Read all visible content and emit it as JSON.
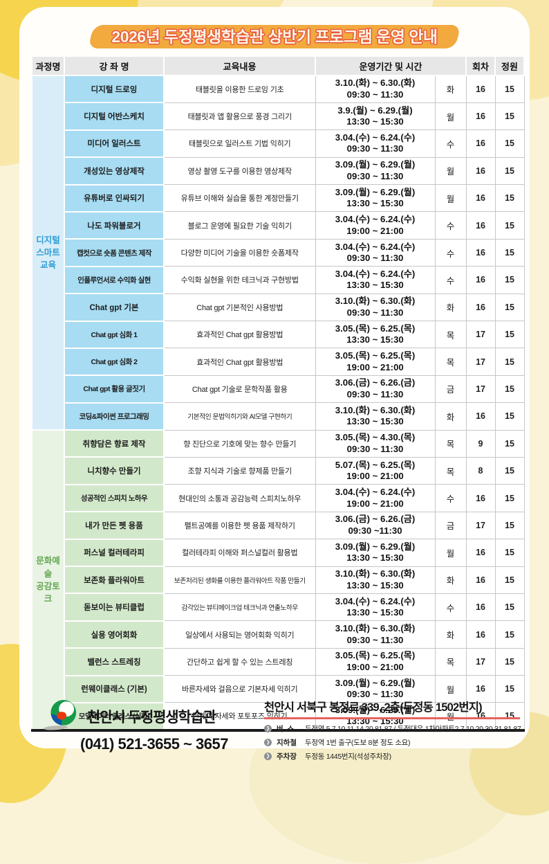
{
  "title": "2026년 두정평생학습관 상반기 프로그램 운영 안내",
  "colors": {
    "page_bg": "#faf3d8",
    "banner_bg": "#f2a93e",
    "banner_text": "#fdf4e4",
    "banner_outline": "#e8573b",
    "header_bg": "#e7e7e7",
    "table_bottom_line": "#1b1b1b",
    "address_underline": "#e4635c"
  },
  "table": {
    "headers": {
      "category": "과정명",
      "name": "강 좌 명",
      "content": "교육내용",
      "period": "운영기간 및 시간",
      "sessions": "회차",
      "capacity": "정원"
    },
    "groups": [
      {
        "key": "digital",
        "category_lines": [
          "디지털",
          "스마트",
          "교육"
        ],
        "label_color": "#2e9cd6",
        "side_bg": "#d8edf8",
        "cell_bg": "#a7dcf2",
        "rows": [
          {
            "name": "디지털 드로잉",
            "content": "태블릿을 이용한 드로잉 기초",
            "period": "3.10.(화) ~ 6.30.(화)",
            "time": "09:30 ~ 11:30",
            "day": "화",
            "sessions": "16",
            "capacity": "15"
          },
          {
            "name": "디지털 어반스케치",
            "content": "태블릿과 앱 활용으로 풍경 그리기",
            "period": "3.9.(월) ~ 6.29.(월)",
            "time": "13:30 ~ 15:30",
            "day": "월",
            "sessions": "16",
            "capacity": "15"
          },
          {
            "name": "미디어 일러스트",
            "content": "태블릿으로 일러스트 기법 익히기",
            "period": "3.04.(수) ~ 6.24.(수)",
            "time": "09:30 ~ 11:30",
            "day": "수",
            "sessions": "16",
            "capacity": "15"
          },
          {
            "name": "개성있는 영상제작",
            "content": "영상 촬영 도구를 이용한 영상제작",
            "period": "3.09.(월) ~ 6.29.(월)",
            "time": "09:30 ~ 11:30",
            "day": "월",
            "sessions": "16",
            "capacity": "15"
          },
          {
            "name": "유튜버로 인싸되기",
            "content": "유튜브 이해와 실습을 통한 계정만들기",
            "period": "3.09.(월) ~ 6.29.(월)",
            "time": "13:30 ~ 15:30",
            "day": "월",
            "sessions": "16",
            "capacity": "15"
          },
          {
            "name": "나도 파워블로거",
            "content": "블로그 운영에 필요한 기술 익히기",
            "period": "3.04.(수) ~ 6.24.(수)",
            "time": "19:00 ~ 21:00",
            "day": "수",
            "sessions": "16",
            "capacity": "15"
          },
          {
            "name": "캡컷으로 숏폼 콘텐츠 제작",
            "content": "다양한 미디어 기술을 이용한 숏폼제작",
            "period": "3.04.(수) ~ 6.24.(수)",
            "time": "09:30 ~ 11:30",
            "day": "수",
            "sessions": "16",
            "capacity": "15"
          },
          {
            "name": "인플루언서로 수익화 실현",
            "content": "수익화 실현을 위한 테크닉과 구현방법",
            "period": "3.04.(수) ~ 6.24.(수)",
            "time": "13:30 ~ 15:30",
            "day": "수",
            "sessions": "16",
            "capacity": "15"
          },
          {
            "name": "Chat gpt 기본",
            "content": "Chat gpt 기본적인 사용방법",
            "period": "3.10.(화) ~ 6.30.(화)",
            "time": "09:30 ~ 11:30",
            "day": "화",
            "sessions": "16",
            "capacity": "15"
          },
          {
            "name": "Chat gpt 심화 1",
            "content": "효과적인 Chat gpt 활용방법",
            "period": "3.05.(목) ~ 6.25.(목)",
            "time": "13:30 ~ 15:30",
            "day": "목",
            "sessions": "17",
            "capacity": "15"
          },
          {
            "name": "Chat gpt 심화 2",
            "content": "효과적인 Chat gpt 활용방법",
            "period": "3.05.(목) ~ 6.25.(목)",
            "time": "19:00 ~ 21:00",
            "day": "목",
            "sessions": "17",
            "capacity": "15"
          },
          {
            "name": "Chat gpt 활용 글짓기",
            "content": "Chat gpt 기술로 문학작품 활용",
            "period": "3.06.(금) ~ 6.26.(금)",
            "time": "09:30 ~ 11:30",
            "day": "금",
            "sessions": "17",
            "capacity": "15"
          },
          {
            "name": "코딩&파이썬 프로그래밍",
            "content": "기본적인 문법익히기와 AI모델 구현하기",
            "period": "3.10.(화) ~ 6.30.(화)",
            "time": "13:30 ~ 15:30",
            "day": "화",
            "sessions": "16",
            "capacity": "15"
          }
        ]
      },
      {
        "key": "culture",
        "category_lines": [
          "문화예술",
          "공감토크"
        ],
        "label_color": "#63a851",
        "side_bg": "#e9f3e4",
        "cell_bg": "#d2e8ca",
        "rows": [
          {
            "name": "취향담은 향료 제작",
            "content": "향 진단으로 기호에 맞는 향수 만들기",
            "period": "3.05.(목) ~ 4.30.(목)",
            "time": "09:30 ~ 11:30",
            "day": "목",
            "sessions": "9",
            "capacity": "15"
          },
          {
            "name": "니치향수 만들기",
            "content": "조향 지식과 기술로 향제품 만들기",
            "period": "5.07.(목) ~ 6.25.(목)",
            "time": "19:00 ~ 21:00",
            "day": "목",
            "sessions": "8",
            "capacity": "15"
          },
          {
            "name": "성공적인 스피치 노하우",
            "content": "현대인의 소통과 공감능력 스피치노하우",
            "period": "3.04.(수) ~ 6.24.(수)",
            "time": "19:00 ~ 21:00",
            "day": "수",
            "sessions": "16",
            "capacity": "15"
          },
          {
            "name": "내가 만든 펫 용품",
            "content": "펠트공예를 이용한 펫 용품 제작하기",
            "period": "3.06.(금) ~ 6.26.(금)",
            "time": "09:30 ~11:30",
            "day": "금",
            "sessions": "17",
            "capacity": "15"
          },
          {
            "name": "퍼스널 컬러테라피",
            "content": "컬러테라피 이해와 퍼스널컬러 활용법",
            "period": "3.09.(월) ~ 6.29.(월)",
            "time": "13:30 ~ 15:30",
            "day": "월",
            "sessions": "16",
            "capacity": "15"
          },
          {
            "name": "보존화 플라워아트",
            "content": "보존처리된 생화를 이용한 플라워아트 작품 만들기",
            "period": "3.10.(화) ~ 6.30.(화)",
            "time": "13:30 ~ 15:30",
            "day": "화",
            "sessions": "16",
            "capacity": "15"
          },
          {
            "name": "돋보이는 뷰티클럽",
            "content": "감각있는 뷰티메이크업 테크닉과 연출노하우",
            "period": "3.04.(수) ~ 6.24.(수)",
            "time": "13:30 ~ 15:30",
            "day": "수",
            "sessions": "16",
            "capacity": "15"
          },
          {
            "name": "실용 영어회화",
            "content": "일상에서 사용되는 영어회화 익히기",
            "period": "3.10.(화) ~ 6.30.(화)",
            "time": "09:30 ~ 11:30",
            "day": "화",
            "sessions": "16",
            "capacity": "15"
          },
          {
            "name": "밸런스 스트레칭",
            "content": "간단하고 쉽게 할 수 있는 스트레칭",
            "period": "3.05.(목) ~ 6.25.(목)",
            "time": "19:00 ~ 21:00",
            "day": "목",
            "sessions": "17",
            "capacity": "15"
          },
          {
            "name": "런웨이클래스 (기본)",
            "content": "바른자세와 걸음으로 기본자세 익히기",
            "period": "3.09.(월) ~ 6.29.(월)",
            "time": "09:30 ~ 11:30",
            "day": "월",
            "sessions": "16",
            "capacity": "15"
          },
          {
            "name": "모델테이너 클래스 (심화)",
            "content": "런웨이 자세와 포토포즈 익히기",
            "period": "3.09.(월) ~ 6.29.(월)",
            "time": "13:30 ~ 15:30",
            "day": "월",
            "sessions": "16",
            "capacity": "15"
          }
        ]
      }
    ]
  },
  "footer": {
    "org_name": "천안시 두정평생학습관",
    "phone": "(041) 521-3655 ~ 3657",
    "address": "천안시 서북구 봉정로 339, 2층(두정동 1502번지)",
    "transport": [
      {
        "label": "버  스",
        "desc": "두정역 5,7,10,11,14,20,81,87 / 두정대우 1차아파트2,7,10,20,30,31,81,87"
      },
      {
        "label": "지하철",
        "desc": "두정역 1번 출구(도보 8분 정도 소요)"
      },
      {
        "label": "주차장",
        "desc": "두정동 1445번지(석성주차장)"
      }
    ]
  }
}
